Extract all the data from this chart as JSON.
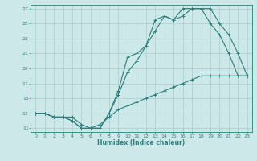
{
  "xlabel": "Humidex (Indice chaleur)",
  "background_color": "#cce8e8",
  "grid_color": "#aacccc",
  "line_color": "#2d7d7d",
  "xlim": [
    -0.5,
    23.5
  ],
  "ylim": [
    10.5,
    27.5
  ],
  "xticks": [
    0,
    1,
    2,
    3,
    4,
    5,
    6,
    7,
    8,
    9,
    10,
    11,
    12,
    13,
    14,
    15,
    16,
    17,
    18,
    19,
    20,
    21,
    22,
    23
  ],
  "yticks": [
    11,
    13,
    15,
    17,
    19,
    21,
    23,
    25,
    27
  ],
  "line1_x": [
    0,
    1,
    2,
    3,
    4,
    5,
    6,
    7,
    8,
    9,
    10,
    11,
    12,
    13,
    14,
    15,
    16,
    17,
    18,
    19,
    20,
    21,
    22,
    23
  ],
  "line1_y": [
    13,
    13,
    12.5,
    12.5,
    12,
    11,
    11,
    11,
    13,
    16,
    20.5,
    21,
    22,
    25.5,
    26,
    25.5,
    27,
    27,
    27,
    27,
    25,
    23.5,
    21,
    18
  ],
  "line2_x": [
    0,
    1,
    2,
    3,
    4,
    5,
    6,
    7,
    8,
    9,
    10,
    11,
    12,
    13,
    14,
    15,
    16,
    17,
    18,
    19,
    20,
    21,
    22,
    23
  ],
  "line2_y": [
    13,
    13,
    12.5,
    12.5,
    12,
    11,
    11,
    11,
    13,
    15.5,
    18.5,
    20,
    22,
    24,
    26,
    25.5,
    26,
    27,
    27,
    25,
    23.5,
    21,
    18,
    18
  ],
  "line3_x": [
    0,
    1,
    2,
    3,
    4,
    5,
    6,
    7,
    8,
    9,
    10,
    11,
    12,
    13,
    14,
    15,
    16,
    17,
    18,
    19,
    20,
    21,
    22,
    23
  ],
  "line3_y": [
    13,
    13,
    12.5,
    12.5,
    12.5,
    11.5,
    11,
    11.5,
    12.5,
    13.5,
    14,
    14.5,
    15,
    15.5,
    16,
    16.5,
    17,
    17.5,
    18,
    18,
    18,
    18,
    18,
    18
  ]
}
